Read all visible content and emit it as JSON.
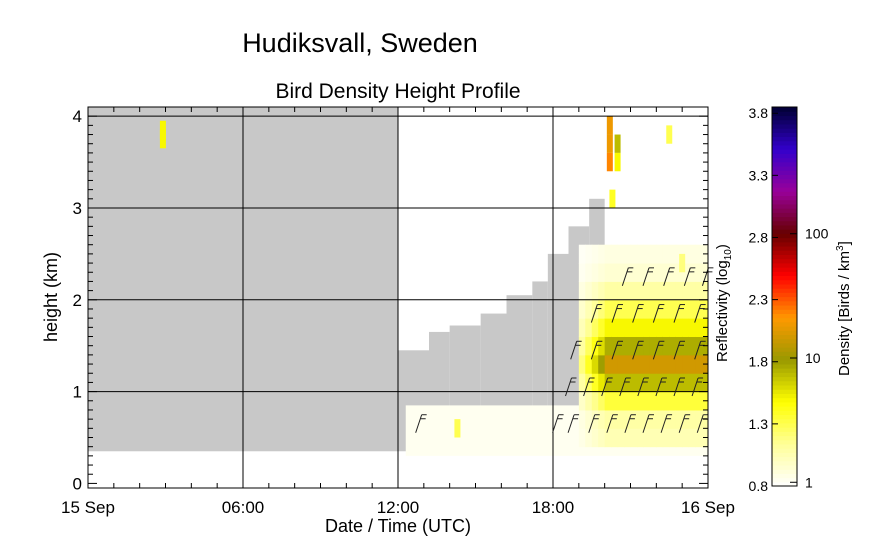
{
  "chart_data": {
    "type": "heatmap",
    "title": "Hudiksvall, Sweden",
    "subtitle": "Bird Density Height Profile",
    "xlabel": "Date / Time (UTC)",
    "ylabel": "height (km)",
    "x_tick_labels": [
      "15 Sep",
      "06:00",
      "12:00",
      "18:00",
      "16 Sep"
    ],
    "x_tick_hours": [
      0,
      6,
      12,
      18,
      24
    ],
    "xlim_hours": [
      0,
      24
    ],
    "y_tick_labels": [
      "0",
      "1",
      "2",
      "3",
      "4"
    ],
    "y_ticks": [
      0,
      1,
      2,
      3,
      4
    ],
    "ylim": [
      -0.05,
      4.1
    ],
    "grid": true,
    "colorbar": {
      "label_left": "Reflectivity (log",
      "label_left_sub": "10",
      "label_left_close": ")",
      "label_right": "Density [Birds / km",
      "label_right_sup": "3",
      "label_right_close": "]",
      "left_ticks": [
        "0.8",
        "1.3",
        "1.8",
        "2.3",
        "2.8",
        "3.3",
        "3.8"
      ],
      "left_tick_values": [
        0.8,
        1.3,
        1.8,
        2.3,
        2.8,
        3.3,
        3.8
      ],
      "right_ticks": [
        "1",
        "10",
        "100"
      ],
      "right_tick_values": [
        1,
        10,
        100
      ],
      "range": [
        0.8,
        3.85
      ],
      "colors": [
        "#ffffff",
        "#ffff99",
        "#ffff00",
        "#999900",
        "#ff9900",
        "#ff0000",
        "#660000",
        "#990099",
        "#3300cc",
        "#000033"
      ]
    },
    "missing_color": "#c8c8c8",
    "coverage": [
      {
        "hour_start": 0,
        "hour_end": 12.0,
        "top_km": 4.1
      },
      {
        "hour_start": 12.0,
        "hour_end": 13.2,
        "top_km": 1.45
      },
      {
        "hour_start": 13.2,
        "hour_end": 14.0,
        "top_km": 1.65
      },
      {
        "hour_start": 14.0,
        "hour_end": 15.2,
        "top_km": 1.72
      },
      {
        "hour_start": 15.2,
        "hour_end": 16.2,
        "top_km": 1.85
      },
      {
        "hour_start": 16.2,
        "hour_end": 17.2,
        "top_km": 2.05
      },
      {
        "hour_start": 17.2,
        "hour_end": 17.8,
        "top_km": 2.2
      },
      {
        "hour_start": 17.8,
        "hour_end": 18.6,
        "top_km": 2.5
      },
      {
        "hour_start": 18.6,
        "hour_end": 19.4,
        "top_km": 2.8
      },
      {
        "hour_start": 19.4,
        "hour_end": 20.0,
        "top_km": 3.1
      }
    ],
    "density_cells": [
      {
        "hour": 2.9,
        "km": 3.85,
        "value": 1.5
      },
      {
        "hour": 2.9,
        "km": 3.75,
        "value": 1.5
      },
      {
        "hour": 20.2,
        "km": 3.9,
        "value": 2.1
      },
      {
        "hour": 20.2,
        "km": 3.7,
        "value": 2.1
      },
      {
        "hour": 20.2,
        "km": 3.5,
        "value": 2.2
      },
      {
        "hour": 20.5,
        "km": 3.7,
        "value": 1.7
      },
      {
        "hour": 20.5,
        "km": 3.5,
        "value": 1.5
      },
      {
        "hour": 22.5,
        "km": 3.8,
        "value": 1.3
      },
      {
        "hour": 20.3,
        "km": 3.1,
        "value": 1.4
      },
      {
        "hour": 14.3,
        "km": 0.6,
        "value": 1.3
      },
      {
        "hour": 23.0,
        "km": 2.4,
        "value": 1.2
      }
    ],
    "density_band": {
      "hour_start": 19.0,
      "hour_end": 24,
      "profile": [
        {
          "km": 0.5,
          "value": 1.05
        },
        {
          "km": 0.7,
          "value": 1.1
        },
        {
          "km": 0.9,
          "value": 1.35
        },
        {
          "km": 1.1,
          "value": 1.7
        },
        {
          "km": 1.3,
          "value": 2.0
        },
        {
          "km": 1.5,
          "value": 1.75
        },
        {
          "km": 1.7,
          "value": 1.5
        },
        {
          "km": 1.9,
          "value": 1.3
        },
        {
          "km": 2.1,
          "value": 1.1
        },
        {
          "km": 2.3,
          "value": 0.95
        },
        {
          "km": 2.5,
          "value": 0.9
        }
      ]
    },
    "wind_barbs": [
      {
        "hour": 12.8,
        "km": 0.65
      },
      {
        "hour": 18.1,
        "km": 0.65
      },
      {
        "hour": 18.7,
        "km": 0.65
      },
      {
        "hour": 19.5,
        "km": 0.65
      },
      {
        "hour": 20.2,
        "km": 0.65
      },
      {
        "hour": 20.9,
        "km": 0.65
      },
      {
        "hour": 21.6,
        "km": 0.65
      },
      {
        "hour": 22.3,
        "km": 0.65
      },
      {
        "hour": 23.0,
        "km": 0.65
      },
      {
        "hour": 23.7,
        "km": 0.65
      },
      {
        "hour": 18.6,
        "km": 1.05
      },
      {
        "hour": 19.3,
        "km": 1.05
      },
      {
        "hour": 20.0,
        "km": 1.05
      },
      {
        "hour": 20.7,
        "km": 1.05
      },
      {
        "hour": 21.4,
        "km": 1.05
      },
      {
        "hour": 22.1,
        "km": 1.05
      },
      {
        "hour": 22.8,
        "km": 1.05
      },
      {
        "hour": 23.5,
        "km": 1.05
      },
      {
        "hour": 18.8,
        "km": 1.45
      },
      {
        "hour": 19.6,
        "km": 1.45
      },
      {
        "hour": 20.4,
        "km": 1.45
      },
      {
        "hour": 21.2,
        "km": 1.45
      },
      {
        "hour": 22.0,
        "km": 1.45
      },
      {
        "hour": 22.8,
        "km": 1.45
      },
      {
        "hour": 23.6,
        "km": 1.45
      },
      {
        "hour": 19.6,
        "km": 1.85
      },
      {
        "hour": 20.4,
        "km": 1.85
      },
      {
        "hour": 21.2,
        "km": 1.85
      },
      {
        "hour": 22.0,
        "km": 1.85
      },
      {
        "hour": 22.8,
        "km": 1.85
      },
      {
        "hour": 23.6,
        "km": 1.85
      },
      {
        "hour": 20.8,
        "km": 2.25
      },
      {
        "hour": 21.6,
        "km": 2.25
      },
      {
        "hour": 22.4,
        "km": 2.25
      },
      {
        "hour": 23.2,
        "km": 2.25
      },
      {
        "hour": 23.9,
        "km": 2.25
      }
    ]
  }
}
